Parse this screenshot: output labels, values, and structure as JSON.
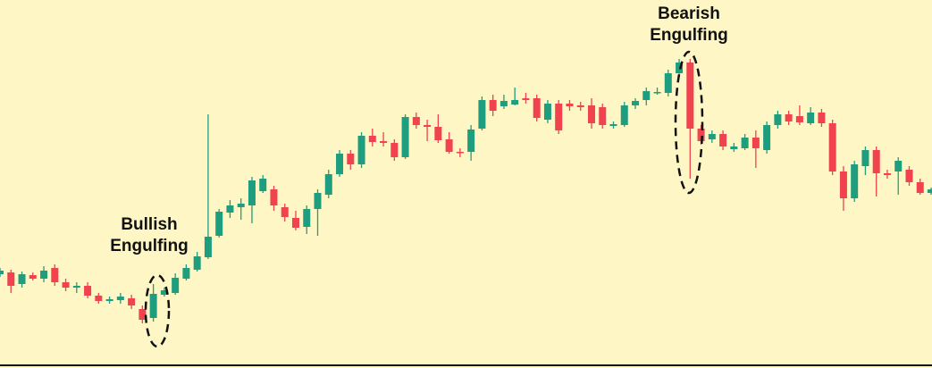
{
  "chart_data": {
    "type": "candlestick",
    "up_color": "#1f9e7f",
    "down_color": "#f0424f",
    "ylim": [
      0,
      412
    ],
    "annotations": [
      {
        "lines": [
          "Bullish",
          "Engulfing"
        ]
      },
      {
        "lines": [
          "Bearish",
          "Engulfing"
        ]
      }
    ],
    "open": [
      105,
      107,
      94,
      104,
      100,
      112,
      96,
      90,
      92,
      81,
      75,
      76,
      78,
      66,
      56,
      82,
      84,
      100,
      110,
      124,
      148,
      174,
      180,
      182,
      198,
      200,
      180,
      168,
      158,
      178,
      194,
      217,
      240,
      228,
      260,
      254,
      252,
      236,
      281,
      272,
      270,
      256,
      242,
      242,
      268,
      300,
      293,
      295,
      302,
      302,
      278,
      296,
      296,
      294,
      294,
      292,
      271,
      272,
      294,
      300,
      308,
      308,
      330,
      342,
      268,
      256,
      262,
      245,
      246,
      258,
      244,
      272,
      284,
      282,
      274,
      286,
      274,
      220,
      190,
      226,
      244,
      218,
      220,
      222,
      208,
      196
    ],
    "high": [
      112,
      110,
      108,
      107,
      114,
      116,
      100,
      96,
      96,
      84,
      80,
      84,
      82,
      70,
      94,
      90,
      106,
      116,
      130,
      284,
      178,
      188,
      190,
      214,
      216,
      204,
      184,
      176,
      182,
      200,
      222,
      244,
      244,
      264,
      268,
      264,
      256,
      284,
      286,
      278,
      284,
      264,
      246,
      272,
      304,
      306,
      306,
      314,
      308,
      306,
      300,
      300,
      300,
      298,
      302,
      296,
      276,
      298,
      302,
      314,
      314,
      334,
      346,
      346,
      272,
      266,
      266,
      252,
      262,
      266,
      276,
      288,
      288,
      294,
      292,
      290,
      278,
      226,
      232,
      248,
      248,
      222,
      236,
      226,
      212,
      202
    ],
    "low": [
      102,
      84,
      90,
      98,
      96,
      92,
      86,
      84,
      78,
      72,
      72,
      72,
      66,
      50,
      52,
      80,
      82,
      98,
      108,
      122,
      146,
      168,
      166,
      162,
      196,
      176,
      164,
      154,
      150,
      148,
      190,
      214,
      222,
      224,
      248,
      248,
      232,
      234,
      268,
      254,
      252,
      240,
      236,
      232,
      266,
      282,
      290,
      294,
      296,
      276,
      274,
      262,
      288,
      288,
      268,
      268,
      268,
      270,
      290,
      294,
      306,
      304,
      326,
      212,
      250,
      252,
      244,
      242,
      244,
      224,
      240,
      268,
      272,
      272,
      272,
      270,
      216,
      176,
      186,
      216,
      192,
      212,
      194,
      204,
      194,
      194
    ],
    "close": [
      109,
      92,
      105,
      100,
      109,
      96,
      90,
      92,
      81,
      75,
      77,
      80,
      70,
      54,
      83,
      87,
      101,
      112,
      125,
      147,
      175,
      182,
      184,
      210,
      212,
      182,
      169,
      157,
      178,
      196,
      217,
      240,
      228,
      260,
      253,
      252,
      236,
      281,
      272,
      270,
      255,
      242,
      241,
      267,
      300,
      288,
      299,
      300,
      300,
      280,
      296,
      266,
      293,
      292,
      274,
      272,
      273,
      294,
      299,
      310,
      309,
      330,
      342,
      268,
      254,
      262,
      248,
      248,
      258,
      246,
      272,
      284,
      276,
      275,
      286,
      274,
      220,
      190,
      228,
      244,
      218,
      216,
      232,
      208,
      196,
      200
    ]
  }
}
